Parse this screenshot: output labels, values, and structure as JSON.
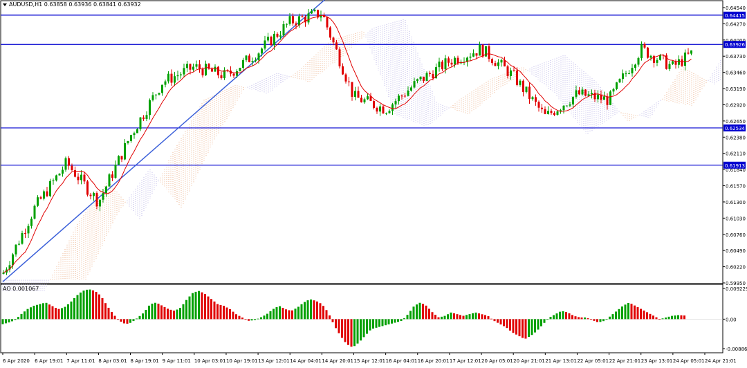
{
  "window": {
    "symbol_header": "AUDUSD,H1  0.63858 0.63936 0.63841 0.63932",
    "ao_header": "AO 0.001067"
  },
  "colors": {
    "background": "#ffffff",
    "bull_candle": "#00a000",
    "bear_candle": "#e00000",
    "trend_line": "#3a5fd9",
    "level_line": "#0000d0",
    "moving_average": "#e00000",
    "cloud_a": "#e8a070",
    "cloud_b": "#a8a0e0",
    "ao_up": "#00a000",
    "ao_down": "#e00000"
  },
  "icons": [
    "dropdown-triangle-icon"
  ],
  "chart_data": [
    {
      "type": "candlestick",
      "title": "AUDUSD,H1",
      "ohlc_last": {
        "open": 0.63858,
        "high": 0.63936,
        "low": 0.63841,
        "close": 0.63932
      },
      "ylim": [
        0.5995,
        0.6454
      ],
      "y_ticks": [
        "0.64540",
        "0.64270",
        "0.64000",
        "0.63730",
        "0.63460",
        "0.63190",
        "0.62920",
        "0.62650",
        "0.62380",
        "0.62110",
        "0.61840",
        "0.61570",
        "0.61300",
        "0.61030",
        "0.60760",
        "0.60490",
        "0.60220",
        "0.59950"
      ],
      "x_ticks": [
        "6 Apr 2020",
        "6 Apr 19:01",
        "7 Apr 11:01",
        "8 Apr 03:01",
        "8 Apr 19:01",
        "9 Apr 11:01",
        "10 Apr 03:01",
        "10 Apr 19:01",
        "13 Apr 12:01",
        "14 Apr 04:01",
        "14 Apr 20:01",
        "15 Apr 12:01",
        "16 Apr 04:01",
        "16 Apr 20:01",
        "17 Apr 12:01",
        "20 Apr 05:01",
        "20 Apr 21:01",
        "21 Apr 13:01",
        "22 Apr 05:01",
        "22 Apr 21:01",
        "23 Apr 13:01",
        "24 Apr 05:01",
        "24 Apr 21:01"
      ],
      "horizontal_levels": [
        {
          "label": "0.64415",
          "value": 0.64415
        },
        {
          "label": "0.63926",
          "value": 0.63926
        },
        {
          "label": "0.62534",
          "value": 0.62534
        },
        {
          "label": "0.61913",
          "value": 0.61913
        }
      ],
      "trend_line": {
        "from": [
          "6 Apr 2020",
          0.5997
        ],
        "to": [
          "14 Apr 20:01",
          0.6463
        ]
      },
      "price_path": [
        [
          "6 Apr 2020",
          0.601
        ],
        [
          "6 Apr 19:01",
          0.612
        ],
        [
          "7 Apr 11:01",
          0.6195
        ],
        [
          "8 Apr 03:01",
          0.613
        ],
        [
          "8 Apr 19:01",
          0.624
        ],
        [
          "9 Apr 11:01",
          0.633
        ],
        [
          "10 Apr 03:01",
          0.6355
        ],
        [
          "10 Apr 19:01",
          0.634
        ],
        [
          "13 Apr 12:01",
          0.638
        ],
        [
          "14 Apr 04:01",
          0.643
        ],
        [
          "14 Apr 20:01",
          0.6445
        ],
        [
          "15 Apr 12:01",
          0.6305
        ],
        [
          "16 Apr 04:01",
          0.6285
        ],
        [
          "16 Apr 20:01",
          0.633
        ],
        [
          "17 Apr 12:01",
          0.6365
        ],
        [
          "20 Apr 05:01",
          0.6385
        ],
        [
          "20 Apr 21:01",
          0.634
        ],
        [
          "21 Apr 13:01",
          0.6272
        ],
        [
          "22 Apr 05:01",
          0.631
        ],
        [
          "22 Apr 21:01",
          0.63
        ],
        [
          "23 Apr 13:01",
          0.6385
        ],
        [
          "24 Apr 05:01",
          0.6355
        ],
        [
          "24 Apr 21:01",
          0.63932
        ]
      ]
    },
    {
      "type": "bar",
      "title": "AO",
      "current": 0.001067,
      "ylim": [
        -0.008861,
        0.009229
      ],
      "y_ticks": [
        "0.009229",
        "0.00",
        "-0.008861"
      ],
      "values": [
        -0.0015,
        -0.001,
        -0.0003,
        0.0015,
        0.003,
        0.004,
        0.0045,
        0.005,
        0.004,
        0.003,
        0.0035,
        0.005,
        0.007,
        0.0085,
        0.009,
        0.0085,
        0.007,
        0.004,
        0.0015,
        -0.0005,
        -0.0015,
        -0.001,
        0.0005,
        0.002,
        0.0045,
        0.005,
        0.004,
        0.003,
        0.0025,
        0.0035,
        0.006,
        0.008,
        0.0085,
        0.0075,
        0.006,
        0.0045,
        0.004,
        0.003,
        0.0015,
        0.0005,
        -0.0005,
        -0.0003,
        0.0005,
        0.0015,
        0.003,
        0.004,
        0.003,
        0.0025,
        0.0035,
        0.005,
        0.006,
        0.0055,
        0.0045,
        0.002,
        -0.002,
        -0.005,
        -0.0075,
        -0.0085,
        -0.007,
        -0.005,
        -0.003,
        -0.0025,
        -0.002,
        -0.0015,
        -0.001,
        -0.0005,
        0.0015,
        0.004,
        0.005,
        0.004,
        0.002,
        0.0005,
        0.001,
        0.002,
        0.0015,
        0.001,
        0.0015,
        0.002,
        0.0015,
        0.001,
        -0.0005,
        -0.0015,
        -0.0025,
        -0.004,
        -0.005,
        -0.006,
        -0.005,
        -0.0035,
        -0.0015,
        0.0005,
        0.0015,
        0.0025,
        0.002,
        0.001,
        0.0005,
        0.0005,
        -0.0003,
        -0.001,
        -0.0005,
        0.001,
        0.0025,
        0.004,
        0.005,
        0.004,
        0.003,
        0.002,
        0.001,
        0.0,
        0.0005,
        0.001,
        0.0012,
        0.0011
      ]
    }
  ]
}
